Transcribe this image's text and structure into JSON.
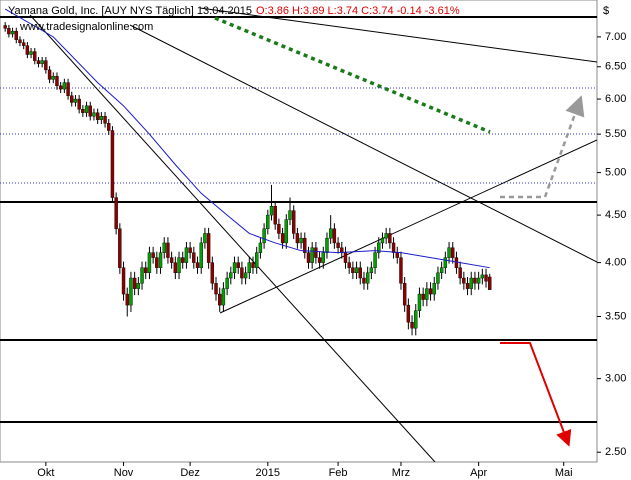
{
  "chart_data": {
    "type": "candlestick",
    "title": "Yamana Gold, Inc. [AUY NYS  Täglich] 13.04.2015",
    "subtitle": "O:3.86 H:3.89 L:3.74 C:3.74 -0.14 -3.61%",
    "source": "www.tradesignalonline.com",
    "y_axis_label": "$",
    "log_scale": true,
    "ylim": [
      2.44,
      7.67
    ],
    "xlim": [
      -1.4,
      160
    ],
    "yticks": [
      {
        "value": 7,
        "label": "7.00"
      },
      {
        "value": 6.5,
        "label": "6.50"
      },
      {
        "value": 6,
        "label": "6.00"
      },
      {
        "value": 5.5,
        "label": "5.50"
      },
      {
        "value": 5,
        "label": "5.00"
      },
      {
        "value": 4.5,
        "label": "4.50"
      },
      {
        "value": 4,
        "label": "4.00"
      },
      {
        "value": 3.5,
        "label": "3.50"
      },
      {
        "value": 3,
        "label": "3.00"
      },
      {
        "value": 2.5,
        "label": "2.50"
      }
    ],
    "xticks": [
      {
        "value": 11,
        "label": "Okt"
      },
      {
        "value": 32,
        "label": "Nov"
      },
      {
        "value": 50,
        "label": "Dez"
      },
      {
        "value": 71,
        "label": "2015"
      },
      {
        "value": 90,
        "label": "Feb"
      },
      {
        "value": 107,
        "label": "Mrz"
      },
      {
        "value": 128,
        "label": "Apr"
      },
      {
        "value": 151,
        "label": "Mai"
      }
    ],
    "up_color": "#00a000",
    "down_color": "#8b0000",
    "ma_color": "#1c1cc8",
    "ohlc": [
      [
        7.2,
        7.26,
        7.09,
        7.15
      ],
      [
        7.15,
        7.21,
        6.99,
        7.05
      ],
      [
        7.05,
        7.16,
        6.99,
        7.1
      ],
      [
        7.1,
        7.16,
        6.89,
        6.95
      ],
      [
        6.95,
        7.01,
        6.84,
        6.9
      ],
      [
        6.9,
        6.96,
        6.79,
        6.85
      ],
      [
        6.85,
        6.91,
        6.64,
        6.7
      ],
      [
        6.7,
        6.81,
        6.64,
        6.75
      ],
      [
        6.75,
        6.81,
        6.54,
        6.6
      ],
      [
        6.6,
        6.66,
        6.49,
        6.55
      ],
      [
        6.55,
        6.66,
        6.49,
        6.6
      ],
      [
        6.6,
        6.66,
        6.39,
        6.45
      ],
      [
        6.45,
        6.51,
        6.24,
        6.3
      ],
      [
        6.3,
        6.41,
        6.24,
        6.35
      ],
      [
        6.35,
        6.41,
        6.14,
        6.2
      ],
      [
        6.2,
        6.26,
        6.09,
        6.15
      ],
      [
        6.15,
        6.31,
        6.09,
        6.25
      ],
      [
        6.25,
        6.31,
        5.99,
        6.05
      ],
      [
        6.05,
        6.11,
        5.89,
        5.95
      ],
      [
        5.95,
        6.06,
        5.89,
        6.0
      ],
      [
        6.0,
        6.06,
        5.79,
        5.85
      ],
      [
        5.85,
        5.91,
        5.74,
        5.8
      ],
      [
        5.8,
        5.96,
        5.74,
        5.9
      ],
      [
        5.9,
        5.96,
        5.69,
        5.75
      ],
      [
        5.75,
        5.86,
        5.69,
        5.8
      ],
      [
        5.8,
        5.86,
        5.64,
        5.7
      ],
      [
        5.7,
        5.81,
        5.64,
        5.75
      ],
      [
        5.75,
        5.81,
        5.59,
        5.65
      ],
      [
        5.65,
        5.71,
        5.49,
        5.55
      ],
      [
        5.55,
        5.61,
        4.64,
        4.7
      ],
      [
        4.7,
        4.76,
        4.29,
        4.35
      ],
      [
        4.35,
        4.41,
        3.89,
        3.95
      ],
      [
        3.95,
        4.01,
        3.64,
        3.7
      ],
      [
        3.7,
        3.76,
        3.5,
        3.6
      ],
      [
        3.6,
        3.91,
        3.54,
        3.85
      ],
      [
        3.85,
        3.91,
        3.69,
        3.75
      ],
      [
        3.75,
        3.86,
        3.69,
        3.8
      ],
      [
        3.8,
        4.01,
        3.74,
        3.95
      ],
      [
        3.95,
        4.01,
        3.84,
        3.9
      ],
      [
        3.9,
        4.16,
        3.84,
        4.1
      ],
      [
        4.1,
        4.16,
        3.99,
        4.05
      ],
      [
        4.05,
        4.11,
        3.89,
        3.95
      ],
      [
        3.95,
        4.16,
        3.89,
        4.1
      ],
      [
        4.1,
        4.26,
        4.04,
        4.2
      ],
      [
        4.2,
        4.26,
        3.99,
        4.05
      ],
      [
        4.05,
        4.11,
        3.94,
        4.0
      ],
      [
        4.0,
        4.06,
        3.84,
        3.9
      ],
      [
        3.9,
        4.11,
        3.84,
        4.05
      ],
      [
        4.05,
        4.11,
        3.94,
        4.0
      ],
      [
        4.0,
        4.21,
        3.94,
        4.15
      ],
      [
        4.15,
        4.21,
        4.04,
        4.1
      ],
      [
        4.1,
        4.16,
        3.94,
        4.0
      ],
      [
        4.0,
        4.06,
        3.89,
        3.95
      ],
      [
        3.95,
        4.26,
        3.89,
        4.2
      ],
      [
        4.2,
        4.36,
        4.14,
        4.3
      ],
      [
        4.3,
        4.36,
        3.94,
        4.0
      ],
      [
        4.0,
        4.06,
        3.74,
        3.8
      ],
      [
        3.8,
        3.86,
        3.64,
        3.7
      ],
      [
        3.7,
        3.76,
        3.54,
        3.6
      ],
      [
        3.6,
        3.81,
        3.54,
        3.75
      ],
      [
        3.75,
        3.91,
        3.69,
        3.85
      ],
      [
        3.85,
        3.96,
        3.79,
        3.9
      ],
      [
        3.9,
        4.06,
        3.84,
        4.0
      ],
      [
        4.0,
        4.06,
        3.89,
        3.95
      ],
      [
        3.95,
        4.01,
        3.79,
        3.85
      ],
      [
        3.85,
        3.96,
        3.79,
        3.9
      ],
      [
        3.9,
        4.06,
        3.84,
        4.0
      ],
      [
        4.0,
        4.06,
        3.89,
        3.95
      ],
      [
        3.95,
        4.16,
        3.89,
        4.1
      ],
      [
        4.1,
        4.26,
        4.04,
        4.2
      ],
      [
        4.2,
        4.41,
        4.14,
        4.35
      ],
      [
        4.35,
        4.56,
        4.29,
        4.5
      ],
      [
        4.5,
        4.85,
        4.44,
        4.6
      ],
      [
        4.6,
        4.66,
        4.34,
        4.4
      ],
      [
        4.4,
        4.46,
        4.24,
        4.3
      ],
      [
        4.3,
        4.36,
        4.14,
        4.2
      ],
      [
        4.2,
        4.51,
        4.14,
        4.45
      ],
      [
        4.45,
        4.7,
        4.39,
        4.55
      ],
      [
        4.55,
        4.61,
        4.24,
        4.3
      ],
      [
        4.3,
        4.36,
        4.14,
        4.2
      ],
      [
        4.2,
        4.31,
        4.14,
        4.25
      ],
      [
        4.25,
        4.31,
        4.04,
        4.1
      ],
      [
        4.1,
        4.16,
        3.94,
        4.0
      ],
      [
        4.0,
        4.21,
        3.94,
        4.15
      ],
      [
        4.15,
        4.21,
        3.99,
        4.05
      ],
      [
        4.05,
        4.11,
        3.94,
        4.0
      ],
      [
        4.0,
        4.16,
        3.94,
        4.1
      ],
      [
        4.1,
        4.31,
        4.04,
        4.25
      ],
      [
        4.25,
        4.5,
        4.19,
        4.35
      ],
      [
        4.35,
        4.41,
        4.14,
        4.2
      ],
      [
        4.2,
        4.26,
        4.09,
        4.15
      ],
      [
        4.15,
        4.21,
        4.04,
        4.1
      ],
      [
        4.1,
        4.16,
        3.94,
        4.0
      ],
      [
        4.0,
        4.06,
        3.89,
        3.95
      ],
      [
        3.95,
        4.01,
        3.84,
        3.9
      ],
      [
        3.9,
        4.01,
        3.84,
        3.95
      ],
      [
        3.95,
        4.01,
        3.79,
        3.85
      ],
      [
        3.85,
        3.91,
        3.74,
        3.8
      ],
      [
        3.8,
        3.96,
        3.74,
        3.9
      ],
      [
        3.9,
        4.01,
        3.84,
        3.95
      ],
      [
        3.95,
        4.16,
        3.89,
        4.1
      ],
      [
        4.1,
        4.26,
        4.04,
        4.2
      ],
      [
        4.2,
        4.31,
        4.14,
        4.25
      ],
      [
        4.25,
        4.36,
        4.19,
        4.3
      ],
      [
        4.3,
        4.36,
        4.14,
        4.2
      ],
      [
        4.2,
        4.26,
        4.04,
        4.1
      ],
      [
        4.1,
        4.16,
        3.99,
        4.05
      ],
      [
        4.05,
        4.11,
        3.74,
        3.8
      ],
      [
        3.8,
        3.86,
        3.54,
        3.6
      ],
      [
        3.6,
        3.66,
        3.39,
        3.45
      ],
      [
        3.45,
        3.51,
        3.34,
        3.4
      ],
      [
        3.4,
        3.61,
        3.34,
        3.55
      ],
      [
        3.55,
        3.76,
        3.49,
        3.7
      ],
      [
        3.7,
        3.76,
        3.59,
        3.65
      ],
      [
        3.65,
        3.81,
        3.59,
        3.75
      ],
      [
        3.75,
        3.81,
        3.64,
        3.7
      ],
      [
        3.7,
        3.86,
        3.64,
        3.8
      ],
      [
        3.8,
        3.96,
        3.74,
        3.9
      ],
      [
        3.9,
        4.01,
        3.84,
        3.95
      ],
      [
        3.95,
        4.11,
        3.89,
        4.05
      ],
      [
        4.05,
        4.21,
        3.99,
        4.15
      ],
      [
        4.15,
        4.21,
        3.99,
        4.05
      ],
      [
        4.05,
        4.11,
        3.89,
        3.95
      ],
      [
        3.95,
        4.01,
        3.79,
        3.85
      ],
      [
        3.85,
        3.91,
        3.74,
        3.8
      ],
      [
        3.8,
        3.86,
        3.69,
        3.75
      ],
      [
        3.75,
        3.91,
        3.69,
        3.85
      ],
      [
        3.85,
        3.91,
        3.74,
        3.8
      ],
      [
        3.8,
        3.91,
        3.74,
        3.85
      ],
      [
        3.85,
        3.94,
        3.79,
        3.88
      ],
      [
        3.88,
        3.94,
        3.76,
        3.82
      ],
      [
        3.86,
        3.89,
        3.74,
        3.74
      ]
    ],
    "ma": {
      "x": [
        0,
        13,
        25,
        32,
        39,
        46,
        53,
        60,
        66,
        73,
        80,
        90,
        100,
        107,
        115,
        123,
        131
      ],
      "values": [
        7.5,
        7.0,
        6.25,
        5.9,
        5.5,
        5.1,
        4.75,
        4.5,
        4.3,
        4.2,
        4.12,
        4.1,
        4.12,
        4.1,
        4.05,
        4.0,
        3.95
      ]
    }
  }
}
